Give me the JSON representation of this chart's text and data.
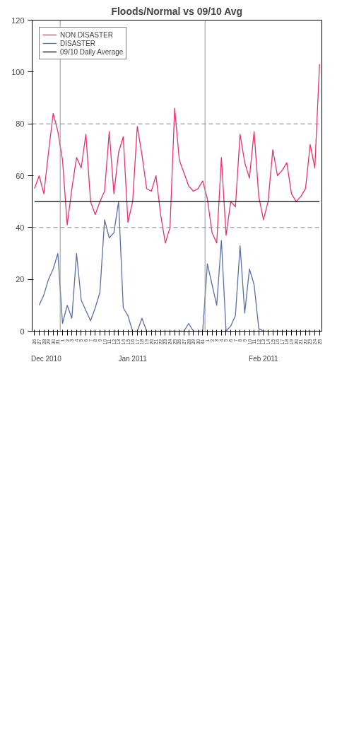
{
  "chart_data": {
    "type": "line",
    "title": "Floods/Normal vs 09/10 Avg",
    "categories": [
      "26",
      "27",
      "28",
      "29",
      "30",
      "31",
      "1",
      "2",
      "3",
      "4",
      "5",
      "6",
      "7",
      "8",
      "9",
      "10",
      "11",
      "12",
      "13",
      "14",
      "15",
      "16",
      "17",
      "18",
      "19",
      "20",
      "21",
      "22",
      "23",
      "24",
      "25",
      "26",
      "27",
      "28",
      "29",
      "30",
      "31",
      "1",
      "2",
      "3",
      "4",
      "5",
      "6",
      "7",
      "8",
      "9",
      "10",
      "11",
      "12",
      "13",
      "14",
      "15",
      "16",
      "17",
      "18",
      "19",
      "20",
      "21",
      "22",
      "23",
      "24",
      "25"
    ],
    "annotations": [
      "Dec 2010",
      "Jan 2011",
      "Feb 2011"
    ],
    "ylim": [
      0,
      120
    ],
    "yticks": [
      0,
      20,
      40,
      60,
      80,
      100,
      120
    ],
    "grid": false,
    "legend": "top left",
    "series": [
      {
        "name": "NON DISASTER",
        "color": "#e8336b",
        "values": [
          55,
          60,
          53,
          69,
          84,
          77,
          66,
          41,
          55,
          67,
          63,
          76,
          50,
          45,
          50,
          54,
          77,
          53,
          69,
          75,
          42,
          50,
          79,
          68,
          55,
          54,
          60,
          45,
          34,
          40,
          86,
          66,
          61,
          56,
          54,
          55,
          58,
          51,
          38,
          34,
          67,
          37,
          50,
          48,
          76,
          65,
          59,
          77,
          52,
          43,
          50,
          70,
          60,
          62,
          65,
          53,
          50,
          52,
          55,
          72,
          63,
          103
        ]
      },
      {
        "name": "DISASTER",
        "color": "#5b6fa8",
        "values": [
          null,
          10,
          14,
          20,
          24,
          30,
          3,
          10,
          5,
          30,
          12,
          8,
          4,
          9,
          15,
          43,
          36,
          38,
          50,
          9,
          6,
          0,
          0,
          5,
          0,
          0,
          0,
          0,
          0,
          0,
          0,
          0,
          0,
          3,
          0,
          0,
          0,
          26,
          18,
          10,
          35,
          0,
          2,
          6,
          33,
          7,
          24,
          18,
          1,
          0,
          0,
          0,
          0,
          0,
          0,
          0,
          0,
          0,
          0,
          0,
          0,
          0
        ]
      },
      {
        "name": "09/10 Daily Average",
        "color": "#000000",
        "values": [
          50,
          50,
          50,
          50,
          50,
          50,
          50,
          50,
          50,
          50,
          50,
          50,
          50,
          50,
          50,
          50,
          50,
          50,
          50,
          50,
          50,
          50,
          50,
          50,
          50,
          50,
          50,
          50,
          50,
          50,
          50,
          50,
          50,
          50,
          50,
          50,
          50,
          50,
          50,
          50,
          50,
          50,
          50,
          50,
          50,
          50,
          50,
          50,
          50,
          50,
          50,
          50,
          50,
          50,
          50,
          50,
          50,
          50,
          50,
          50,
          50,
          50
        ]
      }
    ],
    "ref_lines": [
      {
        "axis": "y",
        "value": 80,
        "color": "#888888",
        "line_style": "dashed"
      },
      {
        "axis": "y",
        "value": 40,
        "color": "#888888",
        "line_style": "dashed"
      }
    ]
  }
}
